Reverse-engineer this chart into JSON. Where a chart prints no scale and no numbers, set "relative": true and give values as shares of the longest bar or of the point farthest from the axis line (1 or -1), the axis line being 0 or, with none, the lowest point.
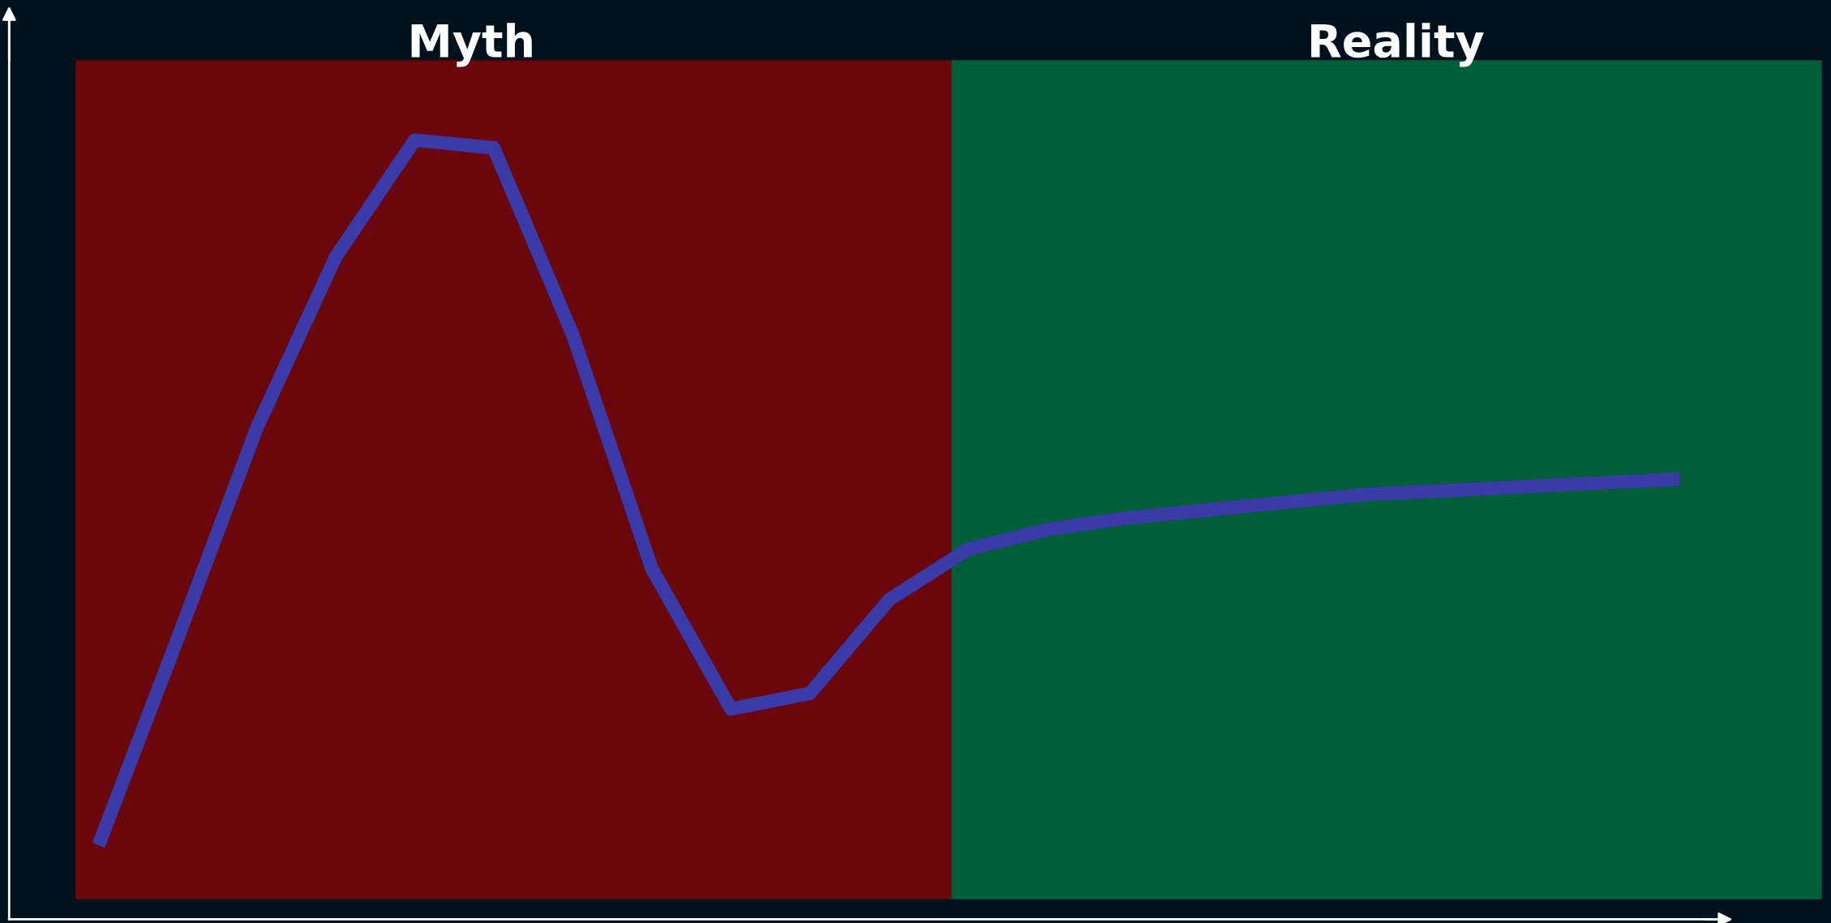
{
  "chart_data": {
    "type": "line",
    "relative": true,
    "categories": [
      null,
      null,
      null,
      null,
      null,
      null,
      null,
      null,
      null,
      null,
      null,
      null,
      null,
      null,
      null,
      null,
      null,
      null,
      null,
      null,
      null
    ],
    "series": [
      {
        "color": "#3a3aa8",
        "values": [
          0.095,
          0.36,
          0.63,
          0.85,
          1.0,
          0.99,
          0.75,
          0.45,
          0.27,
          0.29,
          0.41,
          0.475,
          0.5,
          0.515,
          0.525,
          0.535,
          0.545,
          0.55,
          0.555,
          0.56,
          0.565
        ]
      }
    ],
    "annotations": [
      "Myth",
      "Reality"
    ],
    "grid": false,
    "legend": false,
    "marker": "none",
    "line_style": "solid"
  }
}
